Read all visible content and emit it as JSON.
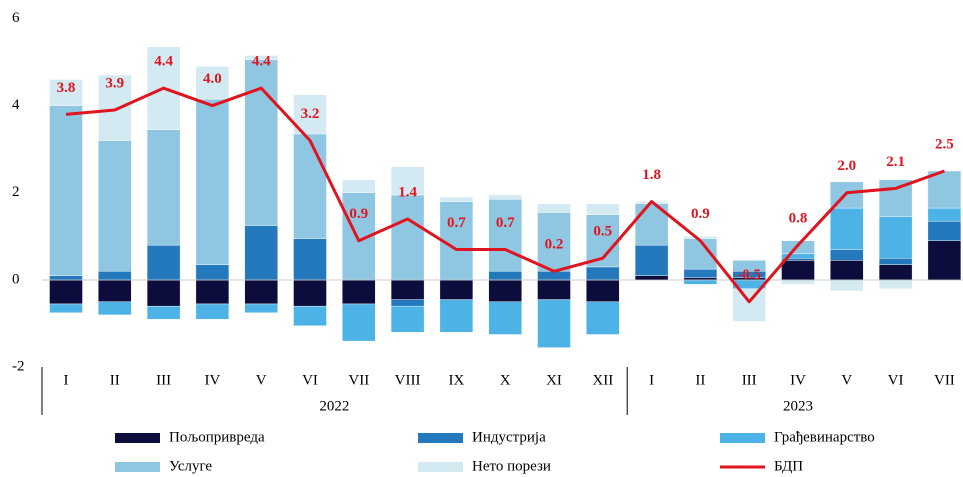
{
  "chart_data": {
    "type": "bar",
    "groups": [
      {
        "name": "2022",
        "categories": [
          "I",
          "II",
          "III",
          "IV",
          "V",
          "VI",
          "VII",
          "VIII",
          "IX",
          "X",
          "XI",
          "XII"
        ]
      },
      {
        "name": "2023",
        "categories": [
          "I",
          "II",
          "III",
          "IV",
          "V",
          "VI",
          "VII"
        ]
      }
    ],
    "ylim": [
      -2,
      6
    ],
    "yticks": [
      -2,
      0,
      2,
      4,
      6
    ],
    "grid": false,
    "series": [
      {
        "name": "Пољопривреда",
        "color": "#0d0d3d",
        "values": [
          -0.55,
          -0.5,
          -0.6,
          -0.55,
          -0.55,
          -0.6,
          -0.55,
          -0.45,
          -0.45,
          -0.5,
          -0.45,
          -0.5,
          0.1,
          0.05,
          0.05,
          0.45,
          0.45,
          0.35,
          0.9
        ]
      },
      {
        "name": "Индустрија",
        "color": "#2479bd",
        "values": [
          0.1,
          0.2,
          0.8,
          0.35,
          1.25,
          0.95,
          0,
          -0.15,
          0,
          0.2,
          0.2,
          0.3,
          0.7,
          0.2,
          0.15,
          0.05,
          0.25,
          0.15,
          0.45
        ]
      },
      {
        "name": "Грађевинарство",
        "color": "#4db3e6",
        "values": [
          -0.2,
          -0.3,
          -0.3,
          -0.35,
          -0.2,
          -0.45,
          -0.85,
          -0.6,
          -0.75,
          -0.75,
          -1.1,
          -0.75,
          0,
          -0.1,
          -0.2,
          0.1,
          0.95,
          0.95,
          0.3
        ]
      },
      {
        "name": "Услуге",
        "color": "#8fc7e3",
        "values": [
          3.9,
          3.0,
          2.65,
          3.8,
          3.8,
          2.4,
          2.0,
          1.95,
          1.8,
          1.65,
          1.35,
          1.2,
          0.95,
          0.7,
          0.25,
          0.3,
          0.6,
          0.85,
          0.85
        ]
      },
      {
        "name": "Нето порези",
        "color": "#d3eaf3",
        "values": [
          0.6,
          1.5,
          1.9,
          0.75,
          0.1,
          0.9,
          0.3,
          0.65,
          0.1,
          0.1,
          0.2,
          0.25,
          0.05,
          0.05,
          -0.75,
          -0.1,
          -0.25,
          -0.2,
          0
        ]
      },
      {
        "name": "БДП",
        "type": "line",
        "color": "#e0141e",
        "values": [
          3.8,
          3.9,
          4.4,
          4.0,
          4.4,
          3.2,
          0.9,
          1.4,
          0.7,
          0.7,
          0.2,
          0.5,
          1.8,
          0.9,
          -0.5,
          0.8,
          2.0,
          2.1,
          2.5
        ],
        "value_labels": [
          "3.8",
          "3.9",
          "4.4",
          "4.0",
          "4.4",
          "3.2",
          "0.9",
          "1.4",
          "0.7",
          "0.7",
          "0.2",
          "0.5",
          "1.8",
          "0.9",
          "-0.5",
          "0.8",
          "2.0",
          "2.1",
          "2.5"
        ]
      }
    ]
  }
}
